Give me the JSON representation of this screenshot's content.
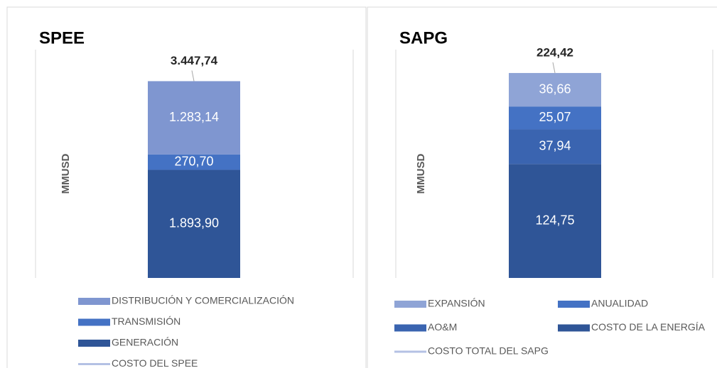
{
  "chart_data": [
    {
      "type": "stacked_bar",
      "title": "SPEE",
      "y_label": "MMUSD",
      "categories": [
        null
      ],
      "ylim": [
        0,
        4000
      ],
      "series": [
        {
          "name": "GENERACIÓN",
          "color": "#2f5597",
          "values": [
            1893.9
          ],
          "value_labels": [
            "1.893,90"
          ]
        },
        {
          "name": "TRANSMISIÓN",
          "color": "#4472c4",
          "values": [
            270.7
          ],
          "value_labels": [
            "270,70"
          ]
        },
        {
          "name": "DISTRIBUCIÓN Y COMERCIALIZACIÓN",
          "color": "#7f96d0",
          "values": [
            1283.14
          ],
          "value_labels": [
            "1.283,14"
          ]
        },
        {
          "name": "COSTO DEL SPEE",
          "type": "line",
          "color": "#b4c1e4",
          "values": [
            3447.74
          ],
          "value_labels": [
            "3.447,74"
          ]
        }
      ]
    },
    {
      "type": "stacked_bar",
      "title": "SAPG",
      "y_label": "MMUSD",
      "categories": [
        null
      ],
      "ylim": [
        0,
        250
      ],
      "series": [
        {
          "name": "COSTO DE LA ENERGÍA",
          "color": "#2f5597",
          "values": [
            124.75
          ],
          "value_labels": [
            "124,75"
          ]
        },
        {
          "name": "AO&M",
          "color": "#3a64b0",
          "values": [
            37.94
          ],
          "value_labels": [
            "37,94"
          ]
        },
        {
          "name": "ANUALIDAD",
          "color": "#4472c4",
          "values": [
            25.07
          ],
          "value_labels": [
            "25,07"
          ]
        },
        {
          "name": "EXPANSIÓN",
          "color": "#8fa4d6",
          "values": [
            36.66
          ],
          "value_labels": [
            "36,66"
          ]
        },
        {
          "name": "COSTO TOTAL DEL SAPG",
          "type": "line",
          "color": "#b4c1e4",
          "values": [
            224.42
          ],
          "value_labels": [
            "224,42"
          ]
        }
      ]
    }
  ]
}
